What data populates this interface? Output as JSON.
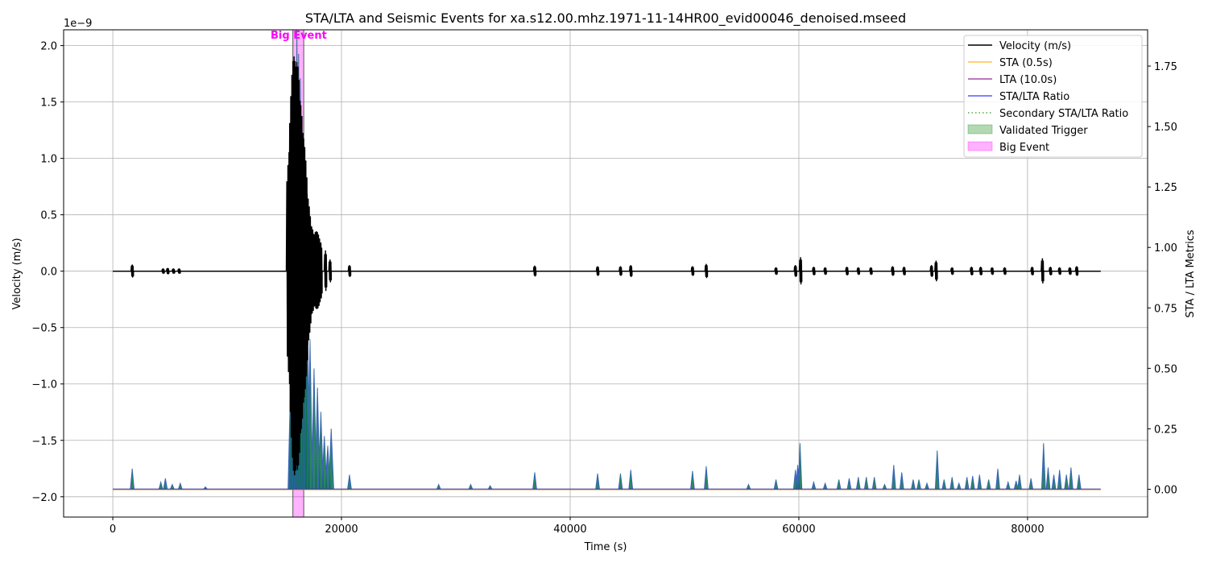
{
  "chart_data": {
    "type": "line",
    "title": "STA/LTA and Seismic Events for xa.s12.00.mhz.1971-11-14HR00_evid00046_denoised.mseed",
    "xlabel": "Time (s)",
    "ylabel_left": "Velocity (m/s)",
    "ylabel_right": "STA / LTA Metrics",
    "left_exponent_label": "1e−9",
    "xlim": [
      -4300,
      90500
    ],
    "ylim_left": [
      -2.18,
      2.14
    ],
    "ylim_right": [
      -0.115,
      1.9
    ],
    "x_ticks": [
      0,
      20000,
      40000,
      60000,
      80000
    ],
    "x_tick_labels": [
      "0",
      "20000",
      "40000",
      "60000",
      "80000"
    ],
    "y_left_ticks": [
      -2.0,
      -1.5,
      -1.0,
      -0.5,
      0.0,
      0.5,
      1.0,
      1.5,
      2.0
    ],
    "y_left_tick_labels": [
      "−2.0",
      "−1.5",
      "−1.0",
      "−0.5",
      "0.0",
      "0.5",
      "1.0",
      "1.5",
      "2.0"
    ],
    "y_right_ticks": [
      0.0,
      0.25,
      0.5,
      0.75,
      1.0,
      1.25,
      1.5,
      1.75
    ],
    "y_right_tick_labels": [
      "0.00",
      "0.25",
      "0.50",
      "0.75",
      "1.00",
      "1.25",
      "1.50",
      "1.75"
    ],
    "grid": true,
    "legend_position": "top-right",
    "legend": [
      {
        "label": "Velocity (m/s)",
        "style": "line",
        "color": "#000000"
      },
      {
        "label": "STA (0.5s)",
        "style": "line",
        "color": "#ffa500"
      },
      {
        "label": "LTA (10.0s)",
        "style": "line",
        "color": "#800080"
      },
      {
        "label": "STA/LTA Ratio",
        "style": "line",
        "color": "#0000ff"
      },
      {
        "label": "Secondary STA/LTA Ratio",
        "style": "dotted",
        "color": "#008000"
      },
      {
        "label": "Validated Trigger",
        "style": "patch",
        "color": "#008000"
      },
      {
        "label": "Big Event",
        "style": "patch",
        "color": "#ff00ff"
      }
    ],
    "big_event": {
      "label": "Big Event",
      "x_start": 15750,
      "x_end": 16700,
      "label_color": "#ff00ff"
    },
    "trace_end_x": 86400,
    "velocity_events": [
      {
        "x": 1700,
        "amp": 0.055
      },
      {
        "x": 4400,
        "amp": 0.02
      },
      {
        "x": 4800,
        "amp": 0.025
      },
      {
        "x": 5300,
        "amp": 0.02
      },
      {
        "x": 5800,
        "amp": 0.02
      },
      {
        "x": 15600,
        "amp": 1.15
      },
      {
        "x": 15850,
        "amp": 1.9
      },
      {
        "x": 16100,
        "amp": 1.85
      },
      {
        "x": 16350,
        "amp": 1.5
      },
      {
        "x": 16600,
        "amp": 1.2
      },
      {
        "x": 16900,
        "amp": 0.7
      },
      {
        "x": 17300,
        "amp": 0.4
      },
      {
        "x": 17800,
        "amp": 0.35
      },
      {
        "x": 18200,
        "amp": 0.25
      },
      {
        "x": 18600,
        "amp": 0.18
      },
      {
        "x": 19000,
        "amp": 0.1
      },
      {
        "x": 20700,
        "amp": 0.05
      },
      {
        "x": 36900,
        "amp": 0.045
      },
      {
        "x": 42400,
        "amp": 0.04
      },
      {
        "x": 44400,
        "amp": 0.04
      },
      {
        "x": 45300,
        "amp": 0.05
      },
      {
        "x": 50700,
        "amp": 0.04
      },
      {
        "x": 51900,
        "amp": 0.06
      },
      {
        "x": 58000,
        "amp": 0.03
      },
      {
        "x": 59700,
        "amp": 0.05
      },
      {
        "x": 60150,
        "amp": 0.12
      },
      {
        "x": 61300,
        "amp": 0.035
      },
      {
        "x": 62300,
        "amp": 0.03
      },
      {
        "x": 64200,
        "amp": 0.035
      },
      {
        "x": 65200,
        "amp": 0.03
      },
      {
        "x": 66300,
        "amp": 0.03
      },
      {
        "x": 68200,
        "amp": 0.04
      },
      {
        "x": 69200,
        "amp": 0.035
      },
      {
        "x": 71600,
        "amp": 0.05
      },
      {
        "x": 72000,
        "amp": 0.09
      },
      {
        "x": 73400,
        "amp": 0.03
      },
      {
        "x": 75100,
        "amp": 0.035
      },
      {
        "x": 75900,
        "amp": 0.035
      },
      {
        "x": 76900,
        "amp": 0.03
      },
      {
        "x": 78000,
        "amp": 0.03
      },
      {
        "x": 80400,
        "amp": 0.035
      },
      {
        "x": 81300,
        "amp": 0.11
      },
      {
        "x": 82000,
        "amp": 0.035
      },
      {
        "x": 82800,
        "amp": 0.03
      },
      {
        "x": 83700,
        "amp": 0.03
      },
      {
        "x": 84300,
        "amp": 0.04
      }
    ],
    "ratio_events": [
      {
        "x": 1700,
        "ratio": 0.085
      },
      {
        "x": 4200,
        "ratio": 0.03
      },
      {
        "x": 4600,
        "ratio": 0.045
      },
      {
        "x": 5200,
        "ratio": 0.02
      },
      {
        "x": 5900,
        "ratio": 0.025
      },
      {
        "x": 8100,
        "ratio": 0.01
      },
      {
        "x": 15550,
        "ratio": 0.45
      },
      {
        "x": 15650,
        "ratio": 1.05
      },
      {
        "x": 15800,
        "ratio": 1.6
      },
      {
        "x": 15950,
        "ratio": 1.75
      },
      {
        "x": 16100,
        "ratio": 1.9
      },
      {
        "x": 16250,
        "ratio": 1.8
      },
      {
        "x": 16400,
        "ratio": 1.7
      },
      {
        "x": 16550,
        "ratio": 1.45
      },
      {
        "x": 16700,
        "ratio": 0.95
      },
      {
        "x": 16850,
        "ratio": 0.9
      },
      {
        "x": 17000,
        "ratio": 0.85
      },
      {
        "x": 17250,
        "ratio": 0.62
      },
      {
        "x": 17600,
        "ratio": 0.5
      },
      {
        "x": 17900,
        "ratio": 0.42
      },
      {
        "x": 18200,
        "ratio": 0.32
      },
      {
        "x": 18500,
        "ratio": 0.22
      },
      {
        "x": 18800,
        "ratio": 0.18
      },
      {
        "x": 19100,
        "ratio": 0.25
      },
      {
        "x": 20700,
        "ratio": 0.06
      },
      {
        "x": 28500,
        "ratio": 0.02
      },
      {
        "x": 31300,
        "ratio": 0.02
      },
      {
        "x": 33000,
        "ratio": 0.015
      },
      {
        "x": 36900,
        "ratio": 0.07
      },
      {
        "x": 42400,
        "ratio": 0.065
      },
      {
        "x": 44400,
        "ratio": 0.065
      },
      {
        "x": 45300,
        "ratio": 0.08
      },
      {
        "x": 50700,
        "ratio": 0.075
      },
      {
        "x": 51900,
        "ratio": 0.095
      },
      {
        "x": 55600,
        "ratio": 0.02
      },
      {
        "x": 58000,
        "ratio": 0.04
      },
      {
        "x": 59700,
        "ratio": 0.08
      },
      {
        "x": 59900,
        "ratio": 0.1
      },
      {
        "x": 60100,
        "ratio": 0.19
      },
      {
        "x": 61300,
        "ratio": 0.03
      },
      {
        "x": 62300,
        "ratio": 0.025
      },
      {
        "x": 63500,
        "ratio": 0.04
      },
      {
        "x": 64400,
        "ratio": 0.045
      },
      {
        "x": 65200,
        "ratio": 0.05
      },
      {
        "x": 65900,
        "ratio": 0.05
      },
      {
        "x": 66600,
        "ratio": 0.05
      },
      {
        "x": 67500,
        "ratio": 0.02
      },
      {
        "x": 68300,
        "ratio": 0.1
      },
      {
        "x": 69000,
        "ratio": 0.07
      },
      {
        "x": 70000,
        "ratio": 0.04
      },
      {
        "x": 70500,
        "ratio": 0.04
      },
      {
        "x": 71200,
        "ratio": 0.025
      },
      {
        "x": 72100,
        "ratio": 0.16
      },
      {
        "x": 72700,
        "ratio": 0.04
      },
      {
        "x": 73400,
        "ratio": 0.05
      },
      {
        "x": 74000,
        "ratio": 0.025
      },
      {
        "x": 74700,
        "ratio": 0.05
      },
      {
        "x": 75200,
        "ratio": 0.055
      },
      {
        "x": 75800,
        "ratio": 0.06
      },
      {
        "x": 76600,
        "ratio": 0.04
      },
      {
        "x": 77400,
        "ratio": 0.085
      },
      {
        "x": 78300,
        "ratio": 0.03
      },
      {
        "x": 79000,
        "ratio": 0.035
      },
      {
        "x": 79300,
        "ratio": 0.06
      },
      {
        "x": 80300,
        "ratio": 0.045
      },
      {
        "x": 81400,
        "ratio": 0.19
      },
      {
        "x": 81800,
        "ratio": 0.09
      },
      {
        "x": 82300,
        "ratio": 0.06
      },
      {
        "x": 82800,
        "ratio": 0.08
      },
      {
        "x": 83400,
        "ratio": 0.06
      },
      {
        "x": 83800,
        "ratio": 0.09
      },
      {
        "x": 84500,
        "ratio": 0.06
      }
    ]
  }
}
